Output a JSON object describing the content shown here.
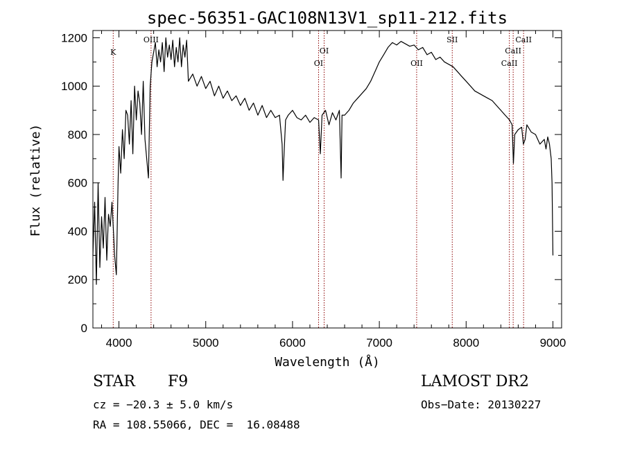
{
  "chart_data": {
    "type": "line",
    "title": "spec-56351-GAC108N13V1_sp11-212.fits",
    "xlabel": "Wavelength (Å)",
    "ylabel": "Flux (relative)",
    "xlim": [
      3700,
      9100
    ],
    "ylim": [
      0,
      1230
    ],
    "x_ticks": [
      "4000",
      "5000",
      "6000",
      "7000",
      "8000",
      "9000"
    ],
    "y_ticks": [
      "0",
      "200",
      "400",
      "600",
      "800",
      "1000",
      "1200"
    ],
    "grid": false,
    "line_color": "#000000",
    "marker_color": "#8b0000",
    "series": [
      {
        "x": [
          3700,
          3720,
          3740,
          3760,
          3780,
          3800,
          3820,
          3840,
          3860,
          3880,
          3900,
          3920,
          3940,
          3950,
          3970,
          3990,
          4000,
          4020,
          4040,
          4060,
          4080,
          4100,
          4120,
          4140,
          4160,
          4180,
          4200,
          4220,
          4240,
          4260,
          4280,
          4300,
          4320,
          4340,
          4360,
          4380,
          4400,
          4420,
          4440,
          4460,
          4480,
          4500,
          4520,
          4540,
          4560,
          4580,
          4600,
          4620,
          4640,
          4660,
          4680,
          4700,
          4720,
          4740,
          4760,
          4780,
          4800,
          4850,
          4900,
          4950,
          5000,
          5050,
          5100,
          5150,
          5200,
          5250,
          5300,
          5350,
          5400,
          5450,
          5500,
          5550,
          5600,
          5650,
          5700,
          5750,
          5800,
          5850,
          5880,
          5890,
          5900,
          5920,
          5950,
          6000,
          6050,
          6100,
          6150,
          6200,
          6250,
          6300,
          6320,
          6340,
          6380,
          6420,
          6460,
          6500,
          6540,
          6560,
          6570,
          6600,
          6650,
          6700,
          6750,
          6800,
          6850,
          6900,
          6950,
          7000,
          7050,
          7100,
          7150,
          7200,
          7250,
          7300,
          7350,
          7400,
          7450,
          7500,
          7550,
          7600,
          7650,
          7700,
          7750,
          7800,
          7850,
          7900,
          7950,
          8000,
          8050,
          8100,
          8150,
          8200,
          8250,
          8300,
          8350,
          8400,
          8450,
          8500,
          8530,
          8545,
          8560,
          8600,
          8640,
          8660,
          8680,
          8700,
          8750,
          8800,
          8850,
          8900,
          8920,
          8940,
          8960,
          8980,
          8990,
          9000
        ],
        "y": [
          300,
          520,
          180,
          600,
          250,
          460,
          330,
          540,
          280,
          470,
          420,
          520,
          380,
          300,
          220,
          600,
          750,
          640,
          820,
          700,
          900,
          880,
          760,
          940,
          720,
          1000,
          860,
          980,
          930,
          800,
          1020,
          780,
          700,
          620,
          1000,
          1100,
          1140,
          1180,
          1080,
          1150,
          1100,
          1180,
          1060,
          1200,
          1120,
          1170,
          1110,
          1190,
          1080,
          1160,
          1100,
          1200,
          1080,
          1170,
          1120,
          1190,
          1020,
          1050,
          1000,
          1040,
          990,
          1020,
          960,
          1000,
          950,
          980,
          940,
          960,
          920,
          950,
          900,
          930,
          880,
          920,
          870,
          900,
          870,
          880,
          760,
          610,
          700,
          860,
          880,
          900,
          870,
          860,
          880,
          850,
          870,
          860,
          720,
          880,
          900,
          840,
          890,
          860,
          900,
          620,
          880,
          880,
          900,
          930,
          950,
          970,
          990,
          1020,
          1060,
          1100,
          1130,
          1160,
          1180,
          1170,
          1185,
          1175,
          1165,
          1170,
          1150,
          1160,
          1130,
          1140,
          1110,
          1120,
          1100,
          1090,
          1080,
          1060,
          1040,
          1020,
          1000,
          980,
          970,
          960,
          950,
          940,
          920,
          900,
          880,
          860,
          840,
          680,
          800,
          820,
          830,
          760,
          780,
          840,
          810,
          800,
          760,
          780,
          740,
          790,
          760,
          700,
          600,
          300
        ]
      }
    ],
    "lines": [
      {
        "x": 3934,
        "label": "K"
      },
      {
        "x": 4370,
        "label": "OIII"
      },
      {
        "x": 6300,
        "label": "OI"
      },
      {
        "x": 6364,
        "label": "OI"
      },
      {
        "x": 7430,
        "label": "OII"
      },
      {
        "x": 7840,
        "label": "SII"
      },
      {
        "x": 8498,
        "label": "CaII"
      },
      {
        "x": 8542,
        "label": "CaII"
      },
      {
        "x": 8662,
        "label": "CaII"
      }
    ]
  },
  "footer": {
    "object_class": "STAR",
    "subclass": "F9",
    "survey": "LAMOST DR2",
    "cz": "cz = −20.3 ± 5.0 km/s",
    "obs_date": "Obs−Date: 20130227",
    "coords": "RA = 108.55066, DEC =  16.08488"
  }
}
